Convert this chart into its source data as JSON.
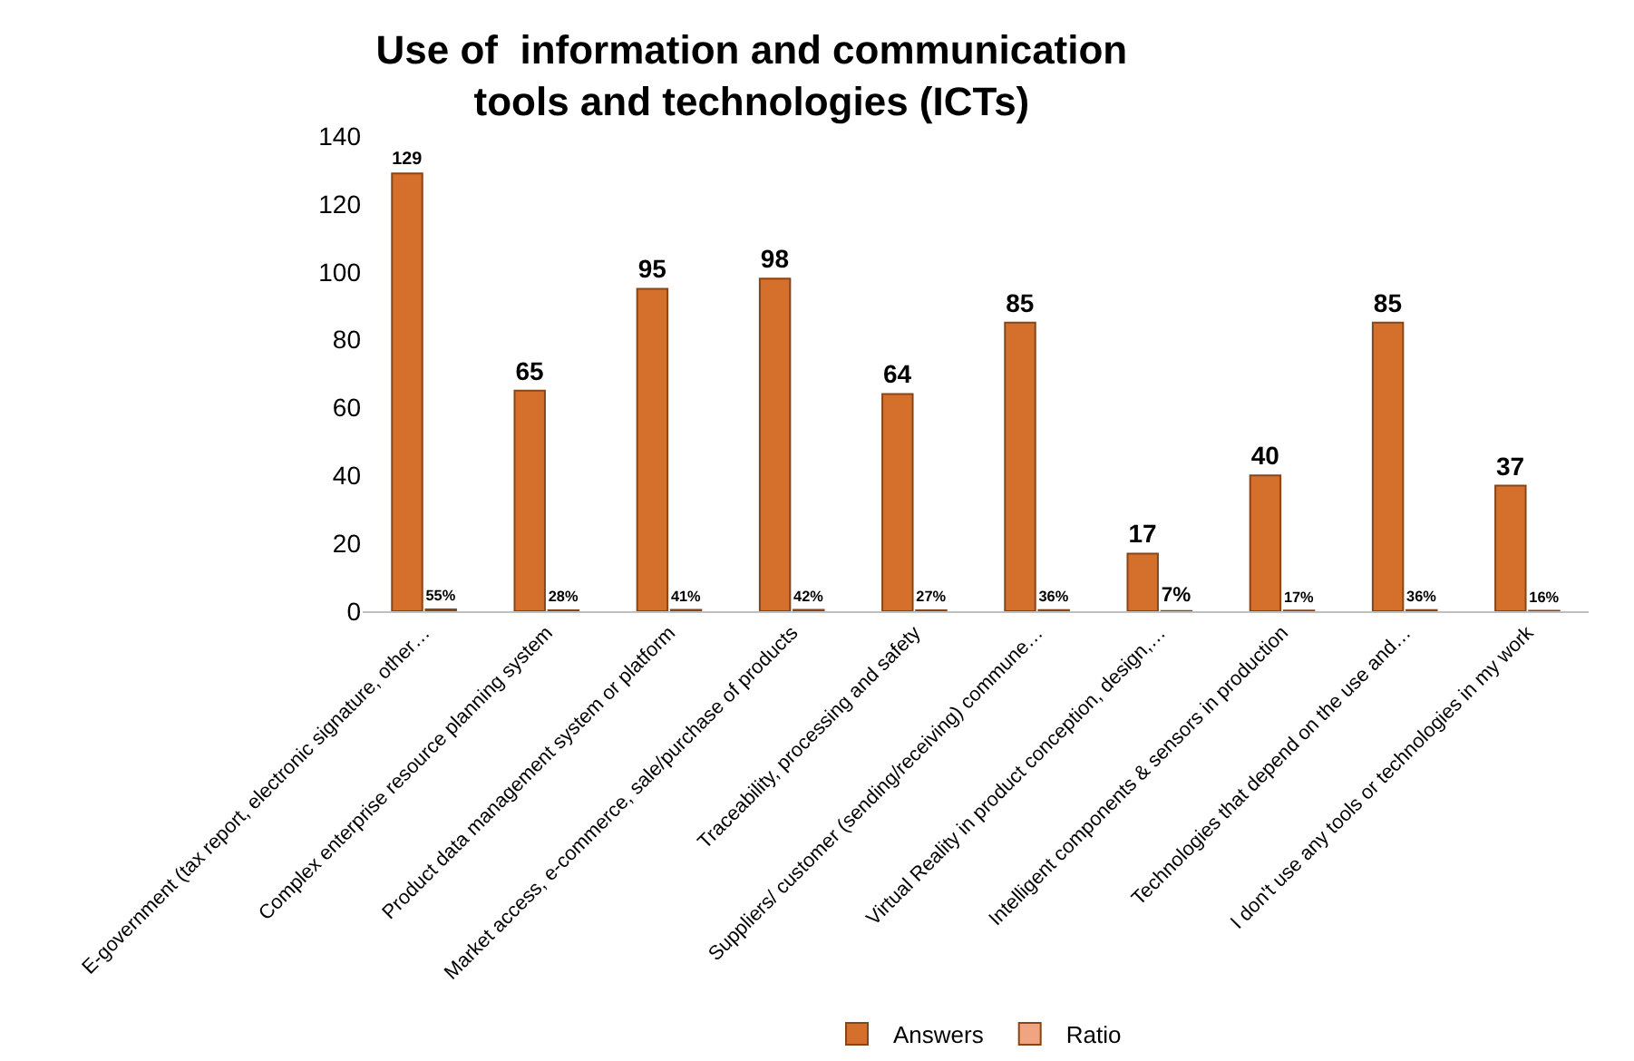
{
  "chart_data": {
    "type": "bar",
    "title": "Use of  information and communication tools and technologies (ICTs)",
    "categories": [
      "E-government (tax report, electronic signature, other…",
      "Complex enterprise resource planning system",
      "Product data management system or platform",
      "Market access, e-commerce, sale/purchase of products",
      "Traceability, processing and safety",
      "Suppliers/ customer (sending/receiving) commune…",
      "Virtual Reality in product conception, design,…",
      "Intelligent components & sensors in production",
      "Technologies that depend on the use and…",
      "I don't use any tools or technologies in my work"
    ],
    "series": [
      {
        "name": "Answers",
        "color": "#d4702c",
        "values": [
          129,
          65,
          95,
          98,
          64,
          85,
          17,
          40,
          85,
          37
        ],
        "value_labels": [
          "129",
          "65",
          "95",
          "98",
          "64",
          "85",
          "17",
          "40",
          "85",
          "37"
        ]
      },
      {
        "name": "Ratio",
        "color": "#f0a582",
        "values": [
          0.55,
          0.28,
          0.41,
          0.42,
          0.27,
          0.36,
          0.07,
          0.17,
          0.36,
          0.16
        ],
        "value_labels": [
          "55%",
          "28%",
          "41%",
          "42%",
          "27%",
          "36%",
          "7%",
          "17%",
          "36%",
          "16%"
        ]
      }
    ],
    "ylim": [
      0,
      140
    ],
    "yticks": [
      0,
      20,
      40,
      60,
      80,
      100,
      120,
      140
    ],
    "grid": false,
    "legend": "bottom"
  }
}
